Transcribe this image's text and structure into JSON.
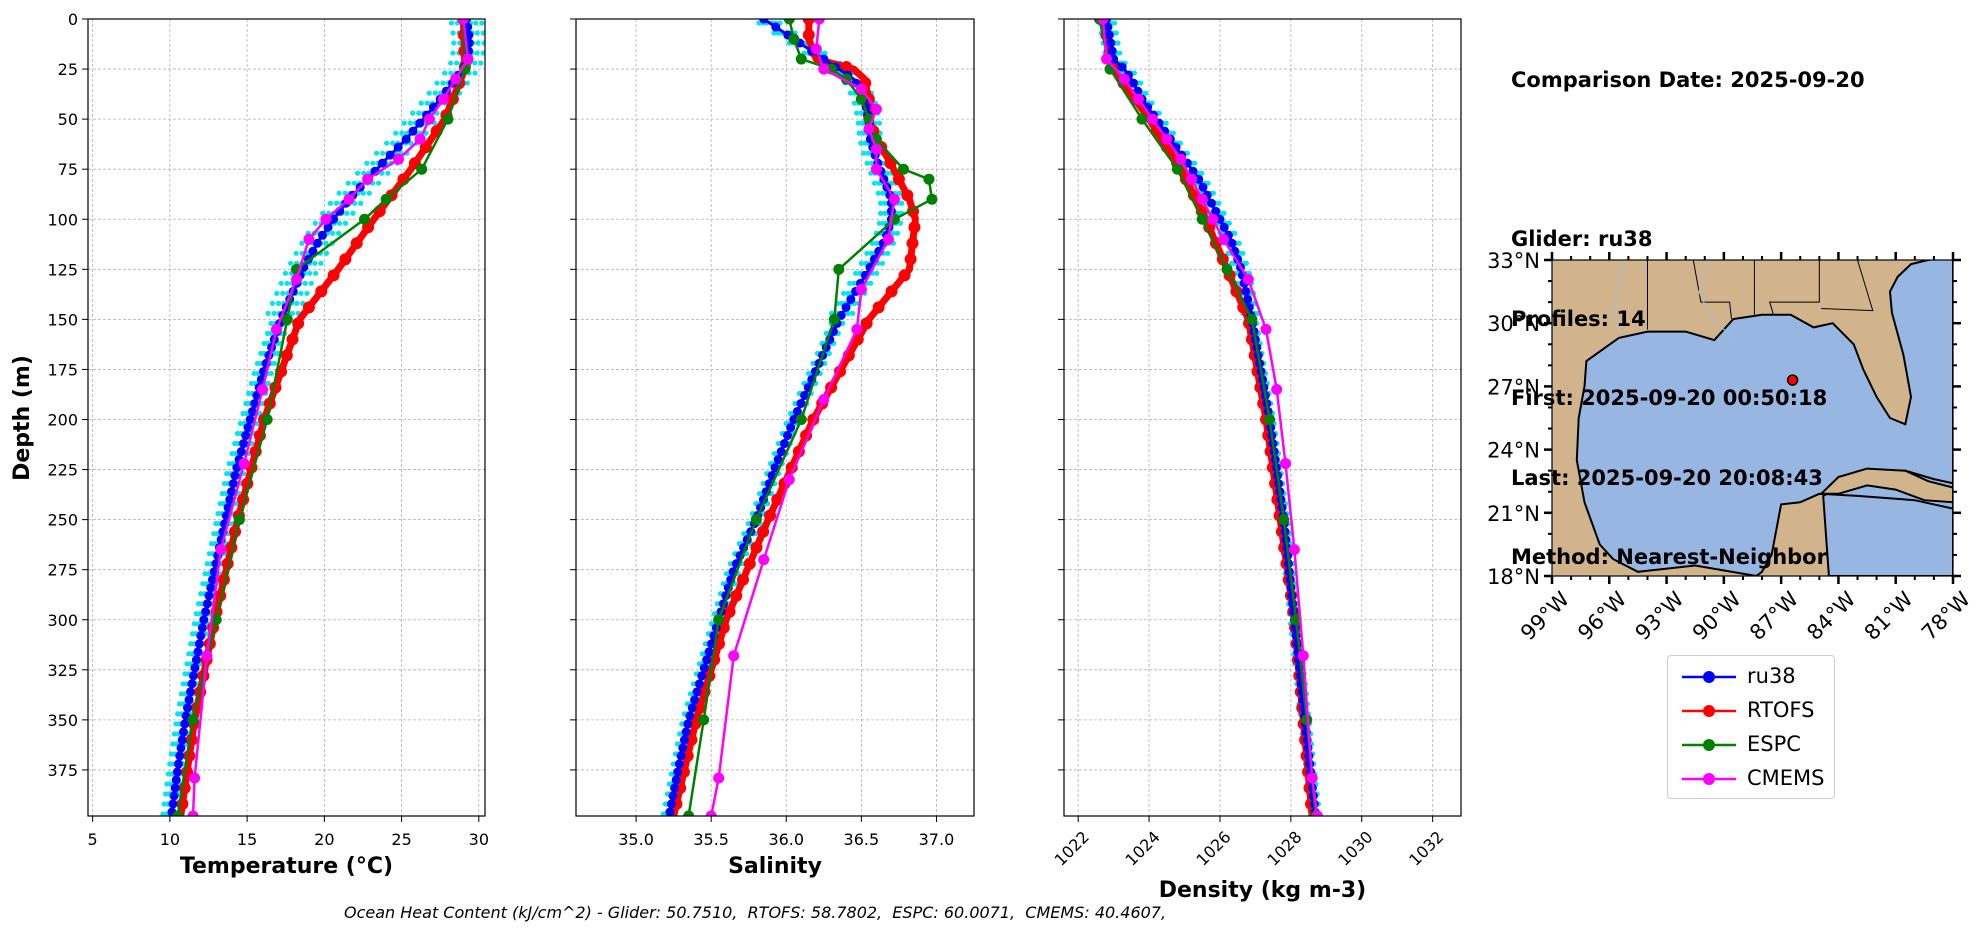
{
  "info": {
    "comparison_date": "Comparison Date: 2025-09-20",
    "glider": "Glider: ru38",
    "profiles": "Profiles: 14",
    "first": "First: 2025-09-20 00:50:18",
    "last": "Last: 2025-09-20 20:08:43",
    "method": "Method: Nearest-Neighbor"
  },
  "footer": "Ocean Heat Content (kJ/cm^2) - Glider: 50.7510,  RTOFS: 58.7802,  ESPC: 60.0071,  CMEMS: 40.4607,",
  "colors": {
    "ru38": "#0000ff",
    "RTOFS": "#ff0000",
    "ESPC": "#008000",
    "CMEMS": "#ff00ff",
    "glider_profiles": "#00e5ee",
    "land": "#d2b48c",
    "ocean": "#97b6e1"
  },
  "legend": [
    {
      "label": "ru38",
      "color": "#0000ff"
    },
    {
      "label": "RTOFS",
      "color": "#ff0000"
    },
    {
      "label": "ESPC",
      "color": "#008000"
    },
    {
      "label": "CMEMS",
      "color": "#ff00ff"
    }
  ],
  "chart_data": [
    {
      "type": "line",
      "xlabel": "Temperature (°C)",
      "ylabel": "Depth (m)",
      "xlim": [
        4.7,
        30.4
      ],
      "ylim": [
        398,
        0
      ],
      "xticks": [
        5,
        10,
        15,
        20,
        25,
        30
      ],
      "yticks": [
        0,
        25,
        50,
        75,
        100,
        125,
        150,
        175,
        200,
        225,
        250,
        275,
        300,
        325,
        350,
        375
      ],
      "grid": true,
      "series": [
        {
          "name": "ru38",
          "depth": [
            0,
            10,
            20,
            25,
            30,
            40,
            50,
            60,
            70,
            80,
            90,
            100,
            110,
            125,
            150,
            175,
            200,
            225,
            250,
            275,
            300,
            325,
            350,
            375,
            398
          ],
          "values": [
            29.2,
            29.4,
            29.3,
            29.0,
            28.5,
            27.5,
            26.4,
            25.3,
            24.0,
            22.8,
            21.6,
            20.6,
            19.7,
            18.6,
            17.2,
            16.1,
            15.2,
            14.3,
            13.6,
            12.9,
            12.2,
            11.6,
            11.0,
            10.5,
            10.1
          ]
        },
        {
          "name": "RTOFS",
          "depth": [
            0,
            25,
            50,
            75,
            100,
            125,
            150,
            200,
            250,
            300,
            350,
            398
          ],
          "values": [
            29.0,
            29.1,
            27.8,
            25.6,
            23.2,
            20.9,
            18.4,
            16.1,
            14.4,
            12.9,
            11.6,
            10.7
          ]
        },
        {
          "name": "ESPC",
          "depth": [
            0,
            25,
            50,
            75,
            90,
            100,
            125,
            150,
            200,
            250,
            300,
            350,
            398
          ],
          "values": [
            29.0,
            29.1,
            28.0,
            26.3,
            24.0,
            22.6,
            18.2,
            17.6,
            16.3,
            14.5,
            13.0,
            11.5,
            10.5
          ]
        },
        {
          "name": "CMEMS",
          "depth": [
            0,
            20,
            30,
            40,
            50,
            60,
            70,
            80,
            90,
            100,
            110,
            130,
            155,
            185,
            222,
            265,
            318,
            379,
            398
          ],
          "values": [
            29.0,
            29.3,
            28.5,
            27.7,
            26.8,
            26.2,
            24.8,
            22.8,
            21.6,
            20.1,
            19.0,
            18.2,
            16.9,
            16.0,
            14.8,
            13.3,
            12.4,
            11.6,
            11.5
          ]
        }
      ]
    },
    {
      "type": "line",
      "xlabel": "Salinity",
      "xlim": [
        34.6,
        37.25
      ],
      "ylim": [
        398,
        0
      ],
      "xticks": [
        35.0,
        35.5,
        36.0,
        36.5,
        37.0
      ],
      "grid": true,
      "series": [
        {
          "name": "ru38",
          "depth": [
            0,
            10,
            20,
            30,
            40,
            50,
            60,
            70,
            80,
            90,
            100,
            110,
            125,
            150,
            175,
            200,
            225,
            250,
            275,
            300,
            325,
            350,
            375,
            398
          ],
          "values": [
            35.85,
            36.05,
            36.25,
            36.45,
            36.52,
            36.55,
            36.56,
            36.6,
            36.65,
            36.7,
            36.7,
            36.66,
            36.55,
            36.35,
            36.2,
            36.05,
            35.92,
            35.8,
            35.65,
            35.55,
            35.45,
            35.35,
            35.28,
            35.22
          ]
        },
        {
          "name": "RTOFS",
          "depth": [
            0,
            10,
            20,
            25,
            30,
            40,
            50,
            60,
            70,
            80,
            90,
            100,
            125,
            150,
            200,
            250,
            300,
            350,
            398
          ],
          "values": [
            36.15,
            36.15,
            36.2,
            36.45,
            36.52,
            36.55,
            36.55,
            36.6,
            36.68,
            36.75,
            36.82,
            36.86,
            36.82,
            36.55,
            36.18,
            35.88,
            35.6,
            35.4,
            35.25
          ]
        },
        {
          "name": "ESPC",
          "depth": [
            0,
            10,
            20,
            25,
            30,
            40,
            50,
            60,
            75,
            80,
            90,
            100,
            125,
            150,
            200,
            250,
            300,
            350,
            398
          ],
          "values": [
            36.02,
            36.05,
            36.1,
            36.3,
            36.4,
            36.5,
            36.55,
            36.6,
            36.78,
            36.95,
            36.97,
            36.72,
            36.35,
            36.32,
            36.1,
            35.8,
            35.55,
            35.45,
            35.35
          ]
        },
        {
          "name": "CMEMS",
          "depth": [
            0,
            15,
            25,
            35,
            45,
            55,
            65,
            75,
            90,
            110,
            135,
            155,
            190,
            230,
            270,
            318,
            379,
            398
          ],
          "values": [
            36.22,
            36.2,
            36.25,
            36.5,
            36.6,
            36.55,
            36.6,
            36.6,
            36.72,
            36.68,
            36.5,
            36.47,
            36.25,
            36.02,
            35.85,
            35.65,
            35.55,
            35.5
          ]
        }
      ]
    },
    {
      "type": "line",
      "xlabel": "Density (kg m-3)",
      "xlim": [
        1021.6,
        1032.8
      ],
      "ylim": [
        398,
        0
      ],
      "xticks": [
        1022,
        1024,
        1026,
        1028,
        1030,
        1032
      ],
      "grid": true,
      "series": [
        {
          "name": "ru38",
          "depth": [
            0,
            10,
            20,
            25,
            30,
            40,
            50,
            60,
            70,
            80,
            90,
            100,
            110,
            125,
            150,
            175,
            200,
            225,
            250,
            275,
            300,
            325,
            350,
            375,
            398
          ],
          "values": [
            1022.8,
            1022.9,
            1023.0,
            1023.3,
            1023.5,
            1023.8,
            1024.2,
            1024.6,
            1025.0,
            1025.4,
            1025.7,
            1026.0,
            1026.3,
            1026.6,
            1026.9,
            1027.15,
            1027.4,
            1027.6,
            1027.8,
            1027.95,
            1028.1,
            1028.25,
            1028.4,
            1028.55,
            1028.7
          ]
        },
        {
          "name": "RTOFS",
          "depth": [
            0,
            25,
            50,
            75,
            100,
            125,
            150,
            200,
            250,
            300,
            350,
            398
          ],
          "values": [
            1022.7,
            1023.0,
            1024.0,
            1024.9,
            1025.6,
            1026.2,
            1026.8,
            1027.3,
            1027.7,
            1028.1,
            1028.35,
            1028.6
          ]
        },
        {
          "name": "ESPC",
          "depth": [
            0,
            25,
            50,
            75,
            100,
            125,
            150,
            200,
            250,
            300,
            350,
            398
          ],
          "values": [
            1022.6,
            1022.9,
            1023.8,
            1024.8,
            1025.5,
            1026.2,
            1026.9,
            1027.4,
            1027.8,
            1028.15,
            1028.45,
            1028.7
          ]
        },
        {
          "name": "CMEMS",
          "depth": [
            0,
            20,
            30,
            40,
            50,
            60,
            70,
            80,
            90,
            100,
            110,
            130,
            155,
            185,
            222,
            265,
            318,
            379,
            398
          ],
          "values": [
            1022.7,
            1022.8,
            1023.3,
            1023.7,
            1024.1,
            1024.5,
            1024.9,
            1025.2,
            1025.5,
            1025.8,
            1026.1,
            1026.8,
            1027.3,
            1027.6,
            1027.85,
            1028.1,
            1028.35,
            1028.6,
            1028.75
          ]
        }
      ]
    },
    {
      "type": "map",
      "lat_ticks": [
        "33°N",
        "30°N",
        "27°N",
        "24°N",
        "21°N",
        "18°N"
      ],
      "lon_ticks": [
        "99°W",
        "96°W",
        "93°W",
        "90°W",
        "87°W",
        "84°W",
        "81°W",
        "78°W"
      ],
      "lat_range": [
        18,
        33
      ],
      "lon_range": [
        -99,
        -78
      ],
      "glider_position": {
        "lat": 27.3,
        "lon": -86.4
      }
    }
  ]
}
